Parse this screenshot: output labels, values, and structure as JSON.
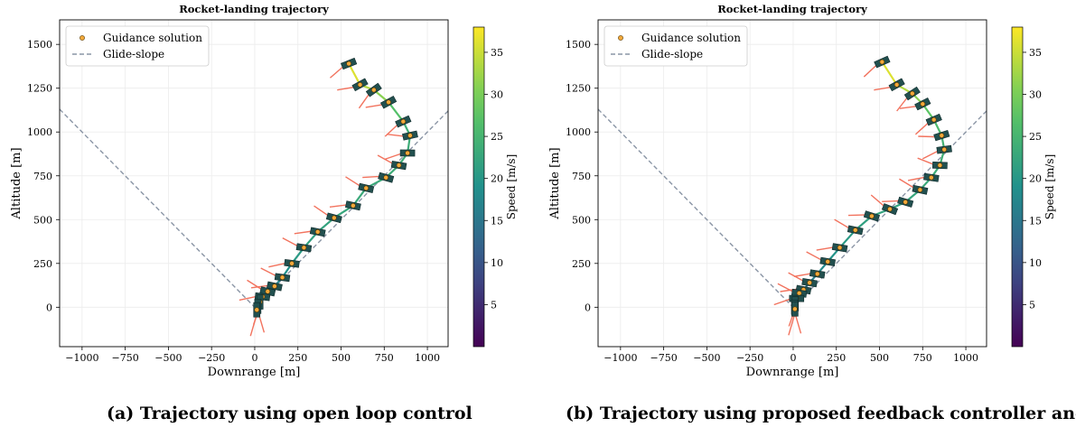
{
  "chart_data": [
    {
      "type": "line",
      "title": "Rocket-landing trajectory",
      "xlabel": "Downrange [m]",
      "ylabel": "Altitude [m]",
      "xlim": [
        -1130,
        1120
      ],
      "ylim": [
        -225,
        1640
      ],
      "xticks": [
        -1000,
        -750,
        -500,
        -250,
        0,
        250,
        500,
        750,
        1000
      ],
      "yticks": [
        0,
        250,
        500,
        750,
        1000,
        1250,
        1500
      ],
      "grid": true,
      "legend": {
        "position": "top-left",
        "entries": [
          "Guidance solution",
          "Glide-slope"
        ]
      },
      "colorbar": {
        "label": "Speed [m/s]",
        "ticks": [
          5,
          10,
          15,
          20,
          25,
          30,
          35
        ],
        "range": [
          0,
          38
        ]
      },
      "caption": "(a) Trajectory using open loop control",
      "series": [
        {
          "name": "Glide-slope",
          "x": [
            -1130,
            0,
            1120
          ],
          "y": [
            1130,
            0,
            1120
          ]
        },
        {
          "name": "Guidance solution",
          "x": [
            545,
            610,
            690,
            775,
            860,
            900,
            885,
            835,
            760,
            645,
            570,
            460,
            365,
            285,
            215,
            160,
            115,
            75,
            45,
            30,
            18,
            12
          ],
          "y": [
            1390,
            1270,
            1240,
            1170,
            1060,
            980,
            880,
            810,
            740,
            680,
            580,
            510,
            430,
            340,
            250,
            170,
            120,
            90,
            60,
            30,
            5,
            -15
          ],
          "speed": [
            38,
            34,
            33,
            29,
            25,
            23,
            24,
            24,
            23,
            23,
            23,
            22,
            22,
            21,
            20,
            18,
            16,
            15,
            13,
            11,
            8,
            5
          ]
        }
      ]
    },
    {
      "type": "line",
      "title": "Rocket-landing trajectory",
      "xlabel": "Downrange [m]",
      "ylabel": "Altitude [m]",
      "xlim": [
        -1130,
        1120
      ],
      "ylim": [
        -225,
        1640
      ],
      "xticks": [
        -1000,
        -750,
        -500,
        -250,
        0,
        250,
        500,
        750,
        1000
      ],
      "yticks": [
        0,
        250,
        500,
        750,
        1000,
        1250,
        1500
      ],
      "grid": true,
      "legend": {
        "position": "top-left",
        "entries": [
          "Guidance solution",
          "Glide-slope"
        ]
      },
      "colorbar": {
        "label": "Speed [m/s]",
        "ticks": [
          5,
          10,
          15,
          20,
          25,
          30,
          35
        ],
        "range": [
          0,
          38
        ]
      },
      "caption": "(b) Trajectory using proposed feedback controller and C",
      "series": [
        {
          "name": "Glide-slope",
          "x": [
            -1130,
            0,
            1120
          ],
          "y": [
            1130,
            0,
            1120
          ]
        },
        {
          "name": "Guidance solution",
          "x": [
            515,
            600,
            690,
            750,
            815,
            860,
            875,
            850,
            800,
            735,
            650,
            560,
            455,
            360,
            270,
            200,
            140,
            95,
            60,
            35,
            20,
            12,
            8,
            10
          ],
          "y": [
            1400,
            1270,
            1220,
            1160,
            1070,
            980,
            900,
            810,
            740,
            670,
            600,
            560,
            520,
            440,
            340,
            260,
            190,
            140,
            100,
            80,
            50,
            20,
            0,
            -10
          ],
          "speed": [
            38,
            34,
            33,
            29,
            27,
            25,
            24,
            24,
            23,
            23,
            22,
            22,
            22,
            21,
            20,
            19,
            17,
            16,
            14,
            12,
            10,
            8,
            6,
            4
          ]
        }
      ]
    }
  ]
}
